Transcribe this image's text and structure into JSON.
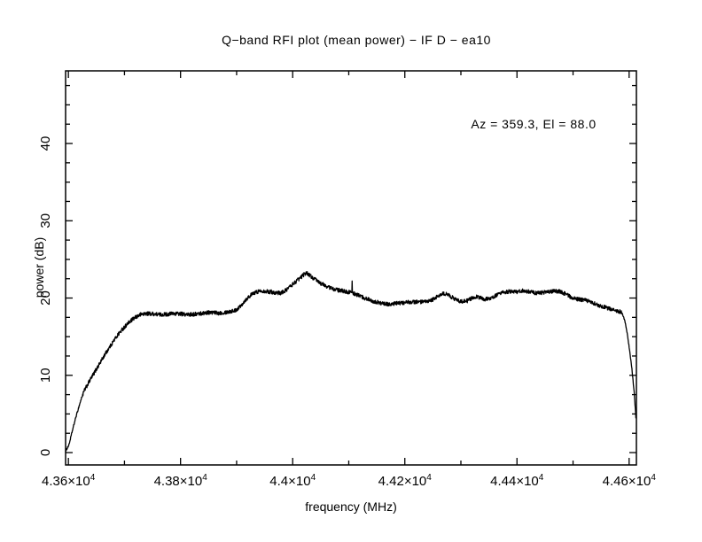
{
  "colors": {
    "background": "#ffffff",
    "line": "#000000",
    "text": "#000000"
  },
  "chart_data": {
    "type": "line",
    "title": "Q−band RFI plot (mean power) − IF D − ea10",
    "annotation": "Az = 359.3, El = 88.0",
    "xlabel": "frequency (MHz)",
    "ylabel": "power (dB)",
    "xlim": [
      43595,
      44613
    ],
    "ylim": [
      -1.6,
      49.4
    ],
    "x_ticks": [
      {
        "value": 43600,
        "label": "4.36",
        "times": "×10",
        "exp": "4"
      },
      {
        "value": 43800,
        "label": "4.38",
        "times": "×10",
        "exp": "4"
      },
      {
        "value": 44000,
        "label": "4.4",
        "times": "×10",
        "exp": "4"
      },
      {
        "value": 44200,
        "label": "4.42",
        "times": "×10",
        "exp": "4"
      },
      {
        "value": 44400,
        "label": "4.44",
        "times": "×10",
        "exp": "4"
      },
      {
        "value": 44600,
        "label": "4.46",
        "times": "×10",
        "exp": "4"
      }
    ],
    "x_minor_step": 100,
    "y_ticks": [
      {
        "value": 0,
        "label": "0"
      },
      {
        "value": 10,
        "label": "10"
      },
      {
        "value": 20,
        "label": "20"
      },
      {
        "value": 30,
        "label": "30"
      },
      {
        "value": 40,
        "label": "40"
      }
    ],
    "y_minor_step": 2.5,
    "grid": false,
    "legend": null,
    "noise_amplitude": 0.26,
    "noise_amplitude_steep": 0.12,
    "steep_bounds": [
      43625,
      44586
    ],
    "sample_step_mhz": 0.5,
    "spike": {
      "x": 44106,
      "y": 22.2
    },
    "keypoints": [
      [
        43595,
        0.2
      ],
      [
        43601,
        1.0
      ],
      [
        43607,
        2.8
      ],
      [
        43613,
        4.5
      ],
      [
        43619,
        6.0
      ],
      [
        43624,
        7.2
      ],
      [
        43629,
        8.1
      ],
      [
        43635,
        8.9
      ],
      [
        43642,
        9.8
      ],
      [
        43650,
        10.8
      ],
      [
        43658,
        11.8
      ],
      [
        43666,
        12.8
      ],
      [
        43674,
        13.7
      ],
      [
        43682,
        14.6
      ],
      [
        43690,
        15.4
      ],
      [
        43698,
        16.1
      ],
      [
        43706,
        16.7
      ],
      [
        43714,
        17.2
      ],
      [
        43722,
        17.6
      ],
      [
        43730,
        17.9
      ],
      [
        43740,
        18.0
      ],
      [
        43752,
        17.95
      ],
      [
        43764,
        17.85
      ],
      [
        43776,
        17.9
      ],
      [
        43788,
        18.0
      ],
      [
        43800,
        17.95
      ],
      [
        43812,
        17.85
      ],
      [
        43824,
        17.9
      ],
      [
        43836,
        18.0
      ],
      [
        43848,
        18.15
      ],
      [
        43858,
        18.1
      ],
      [
        43868,
        18.05
      ],
      [
        43878,
        18.15
      ],
      [
        43888,
        18.25
      ],
      [
        43898,
        18.4
      ],
      [
        43906,
        18.9
      ],
      [
        43914,
        19.6
      ],
      [
        43922,
        20.2
      ],
      [
        43930,
        20.6
      ],
      [
        43938,
        20.85
      ],
      [
        43946,
        20.95
      ],
      [
        43954,
        20.85
      ],
      [
        43962,
        20.8
      ],
      [
        43970,
        20.7
      ],
      [
        43978,
        20.65
      ],
      [
        43986,
        20.9
      ],
      [
        43994,
        21.4
      ],
      [
        44002,
        21.9
      ],
      [
        44010,
        22.4
      ],
      [
        44018,
        22.9
      ],
      [
        44024,
        23.3
      ],
      [
        44028,
        23.1
      ],
      [
        44034,
        22.7
      ],
      [
        44042,
        22.3
      ],
      [
        44050,
        21.9
      ],
      [
        44058,
        21.6
      ],
      [
        44066,
        21.35
      ],
      [
        44074,
        21.15
      ],
      [
        44082,
        21.0
      ],
      [
        44090,
        20.9
      ],
      [
        44098,
        20.8
      ],
      [
        44106,
        20.65
      ],
      [
        44114,
        20.45
      ],
      [
        44122,
        20.2
      ],
      [
        44130,
        19.95
      ],
      [
        44138,
        19.75
      ],
      [
        44146,
        19.55
      ],
      [
        44154,
        19.4
      ],
      [
        44162,
        19.25
      ],
      [
        44170,
        19.2
      ],
      [
        44178,
        19.25
      ],
      [
        44186,
        19.3
      ],
      [
        44194,
        19.35
      ],
      [
        44204,
        19.45
      ],
      [
        44214,
        19.5
      ],
      [
        44224,
        19.5
      ],
      [
        44234,
        19.45
      ],
      [
        44242,
        19.55
      ],
      [
        44250,
        19.8
      ],
      [
        44258,
        20.2
      ],
      [
        44266,
        20.5
      ],
      [
        44273,
        20.55
      ],
      [
        44280,
        20.3
      ],
      [
        44288,
        19.9
      ],
      [
        44296,
        19.65
      ],
      [
        44304,
        19.55
      ],
      [
        44312,
        19.65
      ],
      [
        44320,
        20.0
      ],
      [
        44327,
        20.2
      ],
      [
        44334,
        20.05
      ],
      [
        44342,
        19.85
      ],
      [
        44350,
        19.9
      ],
      [
        44358,
        20.15
      ],
      [
        44366,
        20.45
      ],
      [
        44374,
        20.65
      ],
      [
        44382,
        20.8
      ],
      [
        44390,
        20.85
      ],
      [
        44398,
        20.8
      ],
      [
        44406,
        20.9
      ],
      [
        44414,
        20.95
      ],
      [
        44422,
        20.8
      ],
      [
        44430,
        20.7
      ],
      [
        44438,
        20.65
      ],
      [
        44446,
        20.7
      ],
      [
        44454,
        20.8
      ],
      [
        44462,
        20.85
      ],
      [
        44470,
        20.9
      ],
      [
        44478,
        20.8
      ],
      [
        44486,
        20.55
      ],
      [
        44494,
        20.2
      ],
      [
        44502,
        19.95
      ],
      [
        44510,
        19.8
      ],
      [
        44518,
        19.75
      ],
      [
        44526,
        19.65
      ],
      [
        44534,
        19.4
      ],
      [
        44542,
        19.15
      ],
      [
        44550,
        18.95
      ],
      [
        44558,
        18.8
      ],
      [
        44566,
        18.6
      ],
      [
        44574,
        18.4
      ],
      [
        44580,
        18.3
      ],
      [
        44585,
        18.2
      ],
      [
        44589,
        17.8
      ],
      [
        44593,
        16.8
      ],
      [
        44597,
        15.2
      ],
      [
        44601,
        13.2
      ],
      [
        44605,
        10.8
      ],
      [
        44609,
        7.8
      ],
      [
        44612,
        4.6
      ]
    ]
  }
}
